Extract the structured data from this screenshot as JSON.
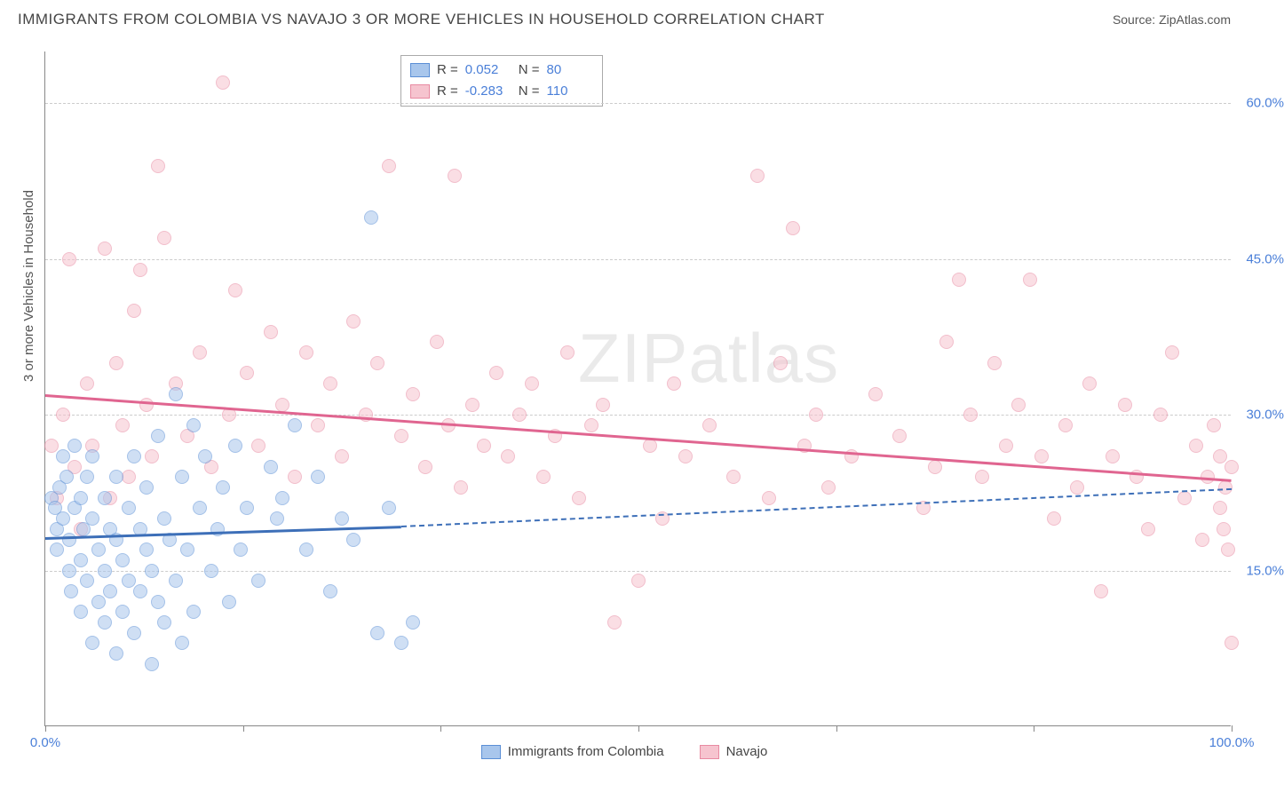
{
  "title": "IMMIGRANTS FROM COLOMBIA VS NAVAJO 3 OR MORE VEHICLES IN HOUSEHOLD CORRELATION CHART",
  "source": "Source: ZipAtlas.com",
  "watermark": "ZIPatlas",
  "y_axis_title": "3 or more Vehicles in Household",
  "chart": {
    "type": "scatter",
    "background_color": "#ffffff",
    "grid_color": "#cccccc",
    "axis_color": "#888888",
    "tick_label_color": "#4a7fd8",
    "label_fontsize": 15,
    "title_fontsize": 17,
    "xlim": [
      0,
      100
    ],
    "ylim": [
      0,
      65
    ],
    "xtick_positions": [
      0,
      16.67,
      33.33,
      50,
      66.67,
      83.33,
      100
    ],
    "xtick_labels": [
      "0.0%",
      "",
      "",
      "",
      "",
      "",
      "100.0%"
    ],
    "ytick_positions": [
      15,
      30,
      45,
      60
    ],
    "ytick_labels": [
      "15.0%",
      "30.0%",
      "45.0%",
      "60.0%"
    ],
    "marker_radius": 8,
    "marker_opacity": 0.55,
    "marker_border_width": 1
  },
  "series": {
    "colombia": {
      "label": "Immigrants from Colombia",
      "fill": "#a8c6ec",
      "stroke": "#5b8fd6",
      "trend_color": "#3d6fb8",
      "r_label": "R =",
      "r_value": "0.052",
      "n_label": "N =",
      "n_value": "80",
      "trend": {
        "x1": 0,
        "y1": 18.2,
        "x2": 30,
        "y2": 19.3,
        "dashed_to_x": 100,
        "dashed_to_y": 22.9
      },
      "points": [
        [
          0.5,
          22
        ],
        [
          0.8,
          21
        ],
        [
          1,
          19
        ],
        [
          1,
          17
        ],
        [
          1.2,
          23
        ],
        [
          1.5,
          26
        ],
        [
          1.5,
          20
        ],
        [
          1.8,
          24
        ],
        [
          2,
          18
        ],
        [
          2,
          15
        ],
        [
          2.2,
          13
        ],
        [
          2.5,
          21
        ],
        [
          2.5,
          27
        ],
        [
          3,
          22
        ],
        [
          3,
          16
        ],
        [
          3,
          11
        ],
        [
          3.2,
          19
        ],
        [
          3.5,
          24
        ],
        [
          3.5,
          14
        ],
        [
          4,
          20
        ],
        [
          4,
          8
        ],
        [
          4,
          26
        ],
        [
          4.5,
          17
        ],
        [
          4.5,
          12
        ],
        [
          5,
          22
        ],
        [
          5,
          15
        ],
        [
          5,
          10
        ],
        [
          5.5,
          19
        ],
        [
          5.5,
          13
        ],
        [
          6,
          24
        ],
        [
          6,
          18
        ],
        [
          6,
          7
        ],
        [
          6.5,
          16
        ],
        [
          6.5,
          11
        ],
        [
          7,
          21
        ],
        [
          7,
          14
        ],
        [
          7.5,
          26
        ],
        [
          7.5,
          9
        ],
        [
          8,
          19
        ],
        [
          8,
          13
        ],
        [
          8.5,
          23
        ],
        [
          8.5,
          17
        ],
        [
          9,
          15
        ],
        [
          9,
          6
        ],
        [
          9.5,
          28
        ],
        [
          9.5,
          12
        ],
        [
          10,
          20
        ],
        [
          10,
          10
        ],
        [
          10.5,
          18
        ],
        [
          11,
          32
        ],
        [
          11,
          14
        ],
        [
          11.5,
          24
        ],
        [
          11.5,
          8
        ],
        [
          12,
          17
        ],
        [
          12.5,
          29
        ],
        [
          12.5,
          11
        ],
        [
          13,
          21
        ],
        [
          13.5,
          26
        ],
        [
          14,
          15
        ],
        [
          14.5,
          19
        ],
        [
          15,
          23
        ],
        [
          15.5,
          12
        ],
        [
          16,
          27
        ],
        [
          16.5,
          17
        ],
        [
          17,
          21
        ],
        [
          18,
          14
        ],
        [
          19,
          25
        ],
        [
          19.5,
          20
        ],
        [
          20,
          22
        ],
        [
          21,
          29
        ],
        [
          22,
          17
        ],
        [
          23,
          24
        ],
        [
          24,
          13
        ],
        [
          25,
          20
        ],
        [
          26,
          18
        ],
        [
          27.5,
          49
        ],
        [
          28,
          9
        ],
        [
          29,
          21
        ],
        [
          30,
          8
        ],
        [
          31,
          10
        ]
      ]
    },
    "navajo": {
      "label": "Navajo",
      "fill": "#f6c4cf",
      "stroke": "#e88aa2",
      "trend_color": "#e06590",
      "r_label": "R =",
      "r_value": "-0.283",
      "n_label": "N =",
      "n_value": "110",
      "trend": {
        "x1": 0,
        "y1": 32.0,
        "x2": 100,
        "y2": 23.8
      },
      "points": [
        [
          0.5,
          27
        ],
        [
          1,
          22
        ],
        [
          1.5,
          30
        ],
        [
          2,
          45
        ],
        [
          2.5,
          25
        ],
        [
          3,
          19
        ],
        [
          3.5,
          33
        ],
        [
          4,
          27
        ],
        [
          5,
          46
        ],
        [
          5.5,
          22
        ],
        [
          6,
          35
        ],
        [
          6.5,
          29
        ],
        [
          7,
          24
        ],
        [
          7.5,
          40
        ],
        [
          8,
          44
        ],
        [
          8.5,
          31
        ],
        [
          9,
          26
        ],
        [
          9.5,
          54
        ],
        [
          10,
          47
        ],
        [
          11,
          33
        ],
        [
          12,
          28
        ],
        [
          13,
          36
        ],
        [
          14,
          25
        ],
        [
          15,
          62
        ],
        [
          15.5,
          30
        ],
        [
          16,
          42
        ],
        [
          17,
          34
        ],
        [
          18,
          27
        ],
        [
          19,
          38
        ],
        [
          20,
          31
        ],
        [
          21,
          24
        ],
        [
          22,
          36
        ],
        [
          23,
          29
        ],
        [
          24,
          33
        ],
        [
          25,
          26
        ],
        [
          26,
          39
        ],
        [
          27,
          30
        ],
        [
          28,
          35
        ],
        [
          29,
          54
        ],
        [
          30,
          28
        ],
        [
          31,
          32
        ],
        [
          32,
          25
        ],
        [
          33,
          37
        ],
        [
          34,
          29
        ],
        [
          34.5,
          53
        ],
        [
          35,
          23
        ],
        [
          36,
          31
        ],
        [
          37,
          27
        ],
        [
          38,
          34
        ],
        [
          39,
          26
        ],
        [
          40,
          30
        ],
        [
          41,
          33
        ],
        [
          42,
          24
        ],
        [
          43,
          28
        ],
        [
          44,
          36
        ],
        [
          45,
          22
        ],
        [
          46,
          29
        ],
        [
          47,
          31
        ],
        [
          48,
          10
        ],
        [
          50,
          14
        ],
        [
          51,
          27
        ],
        [
          52,
          20
        ],
        [
          53,
          33
        ],
        [
          54,
          26
        ],
        [
          56,
          29
        ],
        [
          58,
          24
        ],
        [
          60,
          53
        ],
        [
          61,
          22
        ],
        [
          62,
          35
        ],
        [
          63,
          48
        ],
        [
          64,
          27
        ],
        [
          65,
          30
        ],
        [
          66,
          23
        ],
        [
          68,
          26
        ],
        [
          70,
          32
        ],
        [
          72,
          28
        ],
        [
          74,
          21
        ],
        [
          75,
          25
        ],
        [
          76,
          37
        ],
        [
          77,
          43
        ],
        [
          78,
          30
        ],
        [
          79,
          24
        ],
        [
          80,
          35
        ],
        [
          81,
          27
        ],
        [
          82,
          31
        ],
        [
          83,
          43
        ],
        [
          84,
          26
        ],
        [
          85,
          20
        ],
        [
          86,
          29
        ],
        [
          87,
          23
        ],
        [
          88,
          33
        ],
        [
          89,
          13
        ],
        [
          90,
          26
        ],
        [
          91,
          31
        ],
        [
          92,
          24
        ],
        [
          93,
          19
        ],
        [
          94,
          30
        ],
        [
          95,
          36
        ],
        [
          96,
          22
        ],
        [
          97,
          27
        ],
        [
          97.5,
          18
        ],
        [
          98,
          24
        ],
        [
          98.5,
          29
        ],
        [
          99,
          21
        ],
        [
          99,
          26
        ],
        [
          99.3,
          19
        ],
        [
          99.5,
          23
        ],
        [
          99.7,
          17
        ],
        [
          100,
          25
        ],
        [
          100,
          8
        ]
      ]
    }
  }
}
